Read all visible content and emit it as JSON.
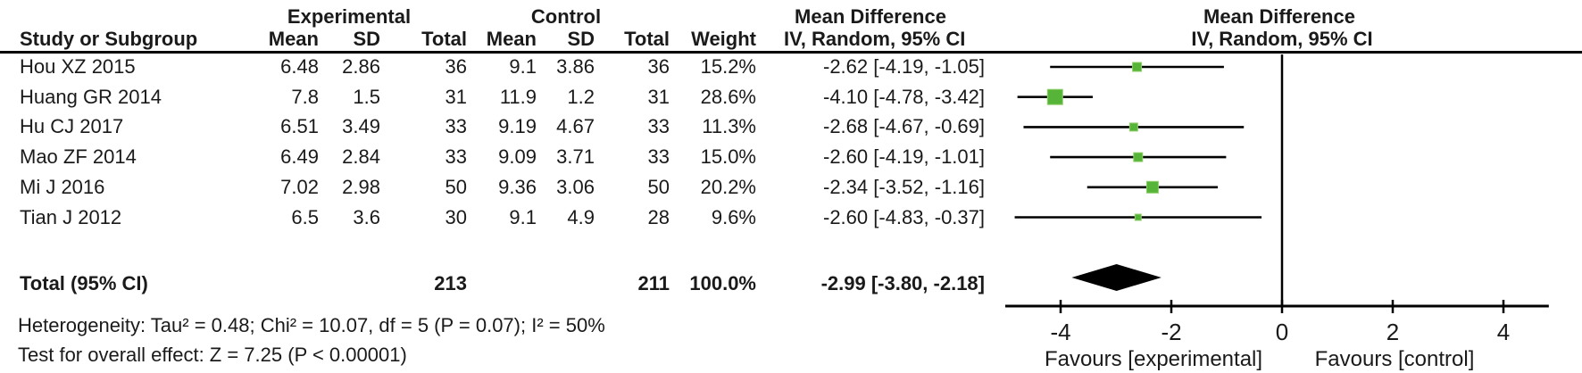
{
  "chart_data": {
    "type": "forest",
    "group_headers": {
      "experimental": "Experimental",
      "control": "Control",
      "md_left": "Mean Difference",
      "md_right": "Mean Difference"
    },
    "column_headers": {
      "study": "Study or Subgroup",
      "exp_mean": "Mean",
      "exp_sd": "SD",
      "exp_total": "Total",
      "ctl_mean": "Mean",
      "ctl_sd": "SD",
      "ctl_total": "Total",
      "weight": "Weight",
      "iv_left": "IV, Random, 95% CI",
      "iv_right": "IV, Random, 95% CI"
    },
    "studies": [
      {
        "name": "Hou XZ 2015",
        "exp_mean": "6.48",
        "exp_sd": "2.86",
        "exp_total": "36",
        "ctl_mean": "9.1",
        "ctl_sd": "3.86",
        "ctl_total": "36",
        "weight": "15.2%",
        "md_label": "-2.62 [-4.19, -1.05]",
        "md": -2.62,
        "lo": -4.19,
        "hi": -1.05,
        "marker": 10
      },
      {
        "name": "Huang GR 2014",
        "exp_mean": "7.8",
        "exp_sd": "1.5",
        "exp_total": "31",
        "ctl_mean": "11.9",
        "ctl_sd": "1.2",
        "ctl_total": "31",
        "weight": "28.6%",
        "md_label": "-4.10 [-4.78, -3.42]",
        "md": -4.1,
        "lo": -4.78,
        "hi": -3.42,
        "marker": 17
      },
      {
        "name": "Hu CJ 2017",
        "exp_mean": "6.51",
        "exp_sd": "3.49",
        "exp_total": "33",
        "ctl_mean": "9.19",
        "ctl_sd": "4.67",
        "ctl_total": "33",
        "weight": "11.3%",
        "md_label": "-2.68 [-4.67, -0.69]",
        "md": -2.68,
        "lo": -4.67,
        "hi": -0.69,
        "marker": 9
      },
      {
        "name": "Mao ZF 2014",
        "exp_mean": "6.49",
        "exp_sd": "2.84",
        "exp_total": "33",
        "ctl_mean": "9.09",
        "ctl_sd": "3.71",
        "ctl_total": "33",
        "weight": "15.0%",
        "md_label": "-2.60 [-4.19, -1.01]",
        "md": -2.6,
        "lo": -4.19,
        "hi": -1.01,
        "marker": 10
      },
      {
        "name": "Mi J 2016",
        "exp_mean": "7.02",
        "exp_sd": "2.98",
        "exp_total": "50",
        "ctl_mean": "9.36",
        "ctl_sd": "3.06",
        "ctl_total": "50",
        "weight": "20.2%",
        "md_label": "-2.34 [-3.52, -1.16]",
        "md": -2.34,
        "lo": -3.52,
        "hi": -1.16,
        "marker": 13
      },
      {
        "name": "Tian J 2012",
        "exp_mean": "6.5",
        "exp_sd": "3.6",
        "exp_total": "30",
        "ctl_mean": "9.1",
        "ctl_sd": "4.9",
        "ctl_total": "28",
        "weight": "9.6%",
        "md_label": "-2.60 [-4.83, -0.37]",
        "md": -2.6,
        "lo": -4.83,
        "hi": -0.37,
        "marker": 7
      }
    ],
    "total": {
      "label": "Total (95% CI)",
      "exp_total": "213",
      "ctl_total": "211",
      "weight": "100.0%",
      "md_label": "-2.99 [-3.80, -2.18]",
      "md": -2.99,
      "lo": -3.8,
      "hi": -2.18
    },
    "footnotes": {
      "heterogeneity": "Heterogeneity: Tau² = 0.48; Chi² = 10.07, df = 5 (P = 0.07); I² = 50%",
      "overall_effect": "Test for overall effect: Z = 7.25 (P < 0.00001)"
    },
    "axis": {
      "ticks": [
        -4,
        -2,
        0,
        2,
        4
      ],
      "min": -5.0,
      "max": 4.82,
      "favours_left": "Favours [experimental]",
      "favours_right": "Favours [control]"
    },
    "colors": {
      "marker_green": "#56b438",
      "line_black": "#000000",
      "diamond_black": "#000000"
    }
  }
}
